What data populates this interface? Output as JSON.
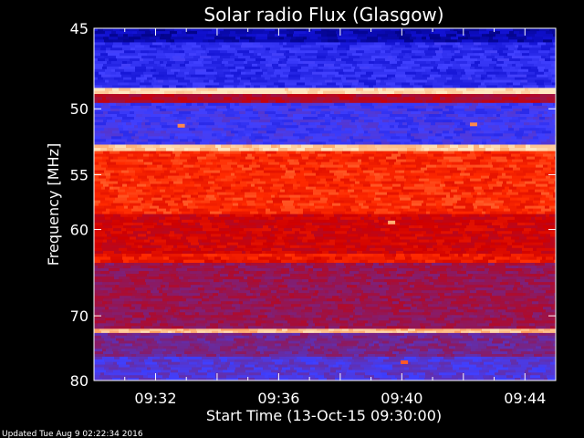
{
  "chart_data": {
    "type": "heatmap",
    "title": "Solar radio Flux (Glasgow)",
    "xlabel": "Start Time (13-Oct-15 09:30:00)",
    "ylabel": "Frequency [MHz]",
    "x_unit": "time",
    "x_range": [
      "09:30:00",
      "09:45:00"
    ],
    "x_ticks": [
      "09:32",
      "09:36",
      "09:40",
      "09:44"
    ],
    "y_unit": "MHz",
    "y_range": [
      45,
      80
    ],
    "y_ticks": [
      45,
      50,
      55,
      60,
      70,
      80
    ],
    "y_scale": "reciprocal",
    "colormap": [
      "#00007a",
      "#1010d0",
      "#4040ff",
      "#6a2a9a",
      "#a01040",
      "#d00000",
      "#ff2a00",
      "#ffa060",
      "#ffe8c0"
    ],
    "bands": [
      {
        "from_mhz": 45.0,
        "to_mhz": 45.8,
        "intensity": 0.08
      },
      {
        "from_mhz": 45.8,
        "to_mhz": 48.6,
        "intensity": 0.2
      },
      {
        "from_mhz": 48.6,
        "to_mhz": 49.0,
        "intensity": 1.0
      },
      {
        "from_mhz": 49.0,
        "to_mhz": 49.6,
        "intensity": 0.55
      },
      {
        "from_mhz": 49.6,
        "to_mhz": 52.6,
        "intensity": 0.25
      },
      {
        "from_mhz": 52.6,
        "to_mhz": 53.1,
        "intensity": 0.95
      },
      {
        "from_mhz": 53.1,
        "to_mhz": 58.5,
        "intensity": 0.74
      },
      {
        "from_mhz": 58.5,
        "to_mhz": 62.5,
        "intensity": 0.62
      },
      {
        "from_mhz": 62.5,
        "to_mhz": 63.5,
        "intensity": 0.7
      },
      {
        "from_mhz": 63.5,
        "to_mhz": 71.8,
        "intensity": 0.48
      },
      {
        "from_mhz": 71.8,
        "to_mhz": 72.4,
        "intensity": 0.93
      },
      {
        "from_mhz": 72.4,
        "to_mhz": 76.0,
        "intensity": 0.4
      },
      {
        "from_mhz": 76.0,
        "to_mhz": 80.0,
        "intensity": 0.3
      }
    ],
    "hot_spots": [
      {
        "time": "09:39:40",
        "mhz": 59.3,
        "intensity": 0.9
      },
      {
        "time": "09:32:50",
        "mhz": 51.2,
        "intensity": 0.85
      },
      {
        "time": "09:42:20",
        "mhz": 51.1,
        "intensity": 0.85
      },
      {
        "time": "09:40:05",
        "mhz": 76.9,
        "intensity": 0.8
      }
    ]
  },
  "footer": {
    "updated": "Updated Tue Aug  9 02:22:34 2016"
  }
}
